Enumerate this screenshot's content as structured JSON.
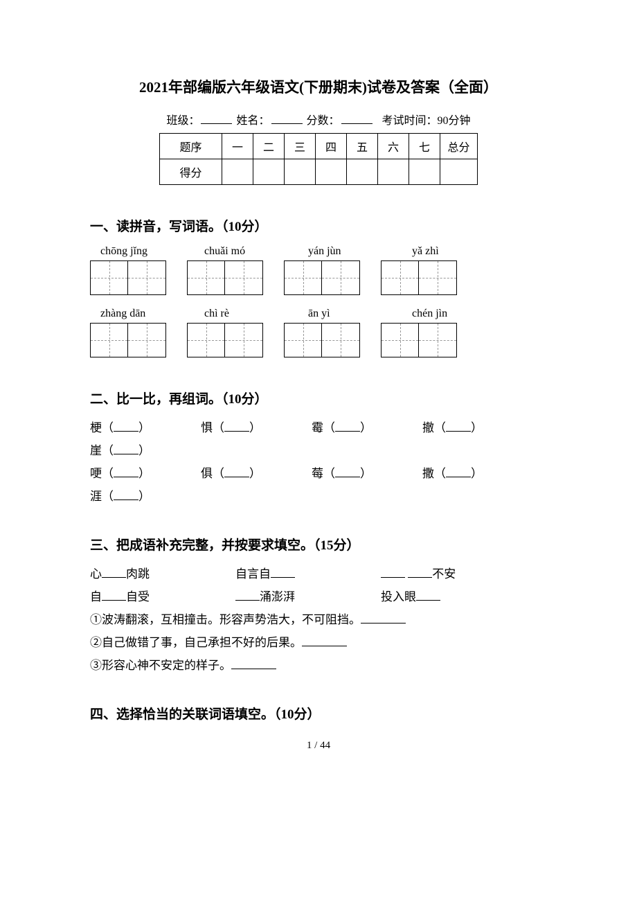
{
  "title": "2021年部编版六年级语文(下册期末)试卷及答案（全面）",
  "info": {
    "class_label": "班级：",
    "name_label": "姓名：",
    "score_label": "分数：",
    "time_label": "考试时间：90分钟"
  },
  "score_table": {
    "row1_label": "题序",
    "row2_label": "得分",
    "cols": [
      "一",
      "二",
      "三",
      "四",
      "五",
      "六",
      "七"
    ],
    "total_label": "总分"
  },
  "section1": {
    "heading": "一、读拼音，写词语。（10分）",
    "row1_pinyin": [
      "chōng jǐng",
      "chuǎi mó",
      "yán jùn",
      "yǎ zhì"
    ],
    "row2_pinyin": [
      "zhàng dān",
      "chì rè",
      "ān yì",
      "chén jìn"
    ]
  },
  "section2": {
    "heading": "二、比一比，再组词。（10分）",
    "row1": [
      "梗",
      "惧",
      "霉",
      "撤"
    ],
    "row2": [
      "崖"
    ],
    "row3": [
      "哽",
      "俱",
      "莓",
      "撒"
    ],
    "row4": [
      "涯"
    ]
  },
  "section3": {
    "heading": "三、把成语补充完整，并按要求填空。（15分）",
    "idioms_row1": [
      {
        "pre": "心",
        "post": "肉跳"
      },
      {
        "pre": "自言自",
        "post": ""
      },
      {
        "pre": "",
        "post": "不安",
        "double": true
      }
    ],
    "idioms_row2": [
      {
        "pre": "自",
        "post": "自受"
      },
      {
        "pre": "",
        "post": "涌澎湃"
      },
      {
        "pre": "投入眼",
        "post": ""
      }
    ],
    "descs": [
      "①波涛翻滚，互相撞击。形容声势浩大，不可阻挡。",
      "②自己做错了事，自己承担不好的后果。",
      "③形容心神不安定的样子。"
    ]
  },
  "section4": {
    "heading": "四、选择恰当的关联词语填空。（10分）"
  },
  "page_number": "1 / 44"
}
